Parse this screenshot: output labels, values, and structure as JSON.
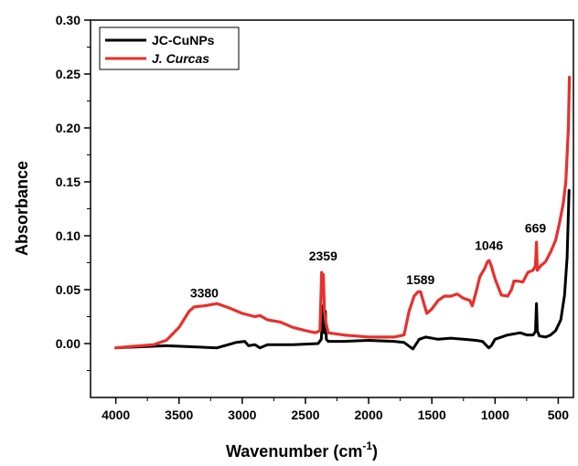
{
  "chart_data": {
    "type": "line",
    "xlabel": "Wavenumber (cm",
    "xlabel_sup": "-1",
    "xlabel_close": ")",
    "ylabel": "Absorbance",
    "xlim": [
      4200,
      380
    ],
    "ylim": [
      -0.05,
      0.3
    ],
    "x_reversed": true,
    "xticks": [
      "4000",
      "3500",
      "3000",
      "2500",
      "2000",
      "1500",
      "1000",
      "500"
    ],
    "xtick_values": [
      4000,
      3500,
      3000,
      2500,
      2000,
      1500,
      1000,
      500
    ],
    "yticks": [
      "0.00",
      "0.05",
      "0.10",
      "0.15",
      "0.20",
      "0.25",
      "0.30"
    ],
    "ytick_values": [
      0,
      0.05,
      0.1,
      0.15,
      0.2,
      0.25,
      0.3
    ],
    "grid": false,
    "legend_position": "top-left",
    "series": [
      {
        "name": "JC-CuNPs",
        "color": "#000000",
        "italic": false,
        "points": [
          [
            4000,
            -0.004
          ],
          [
            3800,
            -0.003
          ],
          [
            3600,
            -0.002
          ],
          [
            3400,
            -0.003
          ],
          [
            3200,
            -0.004
          ],
          [
            3050,
            0.001
          ],
          [
            2980,
            0.002
          ],
          [
            2950,
            -0.002
          ],
          [
            2900,
            -0.001
          ],
          [
            2860,
            -0.004
          ],
          [
            2800,
            -0.001
          ],
          [
            2600,
            -0.001
          ],
          [
            2400,
            0.0
          ],
          [
            2375,
            0.004
          ],
          [
            2360,
            0.035
          ],
          [
            2350,
            0.01
          ],
          [
            2342,
            0.03
          ],
          [
            2335,
            0.004
          ],
          [
            2320,
            0.002
          ],
          [
            2200,
            0.002
          ],
          [
            2000,
            0.003
          ],
          [
            1800,
            0.002
          ],
          [
            1720,
            0.001
          ],
          [
            1650,
            -0.005
          ],
          [
            1600,
            0.004
          ],
          [
            1550,
            0.006
          ],
          [
            1450,
            0.004
          ],
          [
            1350,
            0.005
          ],
          [
            1250,
            0.004
          ],
          [
            1150,
            0.003
          ],
          [
            1100,
            0.002
          ],
          [
            1050,
            -0.004
          ],
          [
            1030,
            -0.002
          ],
          [
            1000,
            0.004
          ],
          [
            900,
            0.008
          ],
          [
            800,
            0.01
          ],
          [
            750,
            0.008
          ],
          [
            700,
            0.008
          ],
          [
            680,
            0.011
          ],
          [
            672,
            0.037
          ],
          [
            666,
            0.012
          ],
          [
            650,
            0.007
          ],
          [
            600,
            0.006
          ],
          [
            560,
            0.008
          ],
          [
            520,
            0.012
          ],
          [
            480,
            0.022
          ],
          [
            450,
            0.045
          ],
          [
            430,
            0.08
          ],
          [
            415,
            0.142
          ]
        ]
      },
      {
        "name": "J. Curcas",
        "color": "#e8302c",
        "italic": true,
        "points": [
          [
            4000,
            -0.004
          ],
          [
            3900,
            -0.003
          ],
          [
            3800,
            -0.002
          ],
          [
            3700,
            -0.001
          ],
          [
            3650,
            0.001
          ],
          [
            3600,
            0.003
          ],
          [
            3500,
            0.015
          ],
          [
            3420,
            0.03
          ],
          [
            3380,
            0.034
          ],
          [
            3300,
            0.035
          ],
          [
            3200,
            0.037
          ],
          [
            3100,
            0.033
          ],
          [
            3000,
            0.028
          ],
          [
            2900,
            0.025
          ],
          [
            2860,
            0.026
          ],
          [
            2800,
            0.022
          ],
          [
            2700,
            0.02
          ],
          [
            2600,
            0.015
          ],
          [
            2500,
            0.012
          ],
          [
            2420,
            0.01
          ],
          [
            2385,
            0.012
          ],
          [
            2372,
            0.066
          ],
          [
            2365,
            0.05
          ],
          [
            2358,
            0.064
          ],
          [
            2350,
            0.03
          ],
          [
            2340,
            0.02
          ],
          [
            2320,
            0.01
          ],
          [
            2200,
            0.008
          ],
          [
            2000,
            0.006
          ],
          [
            1800,
            0.006
          ],
          [
            1720,
            0.008
          ],
          [
            1680,
            0.03
          ],
          [
            1640,
            0.044
          ],
          [
            1610,
            0.048
          ],
          [
            1589,
            0.048
          ],
          [
            1560,
            0.036
          ],
          [
            1540,
            0.028
          ],
          [
            1500,
            0.032
          ],
          [
            1450,
            0.04
          ],
          [
            1400,
            0.044
          ],
          [
            1350,
            0.044
          ],
          [
            1300,
            0.046
          ],
          [
            1250,
            0.042
          ],
          [
            1200,
            0.04
          ],
          [
            1180,
            0.035
          ],
          [
            1150,
            0.048
          ],
          [
            1120,
            0.062
          ],
          [
            1080,
            0.07
          ],
          [
            1060,
            0.076
          ],
          [
            1046,
            0.077
          ],
          [
            1030,
            0.072
          ],
          [
            1000,
            0.06
          ],
          [
            950,
            0.045
          ],
          [
            900,
            0.044
          ],
          [
            870,
            0.05
          ],
          [
            850,
            0.058
          ],
          [
            820,
            0.058
          ],
          [
            780,
            0.057
          ],
          [
            740,
            0.066
          ],
          [
            700,
            0.068
          ],
          [
            680,
            0.072
          ],
          [
            672,
            0.094
          ],
          [
            666,
            0.068
          ],
          [
            640,
            0.072
          ],
          [
            600,
            0.076
          ],
          [
            560,
            0.085
          ],
          [
            520,
            0.096
          ],
          [
            490,
            0.112
          ],
          [
            460,
            0.13
          ],
          [
            440,
            0.15
          ],
          [
            420,
            0.2
          ],
          [
            412,
            0.247
          ]
        ]
      }
    ],
    "annotations": [
      {
        "text": "3380",
        "x": 3300,
        "y": 0.043
      },
      {
        "text": "2359",
        "x": 2360,
        "y": 0.077
      },
      {
        "text": "1589",
        "x": 1590,
        "y": 0.055
      },
      {
        "text": "1046",
        "x": 1048,
        "y": 0.087
      },
      {
        "text": "669",
        "x": 680,
        "y": 0.103
      }
    ]
  }
}
